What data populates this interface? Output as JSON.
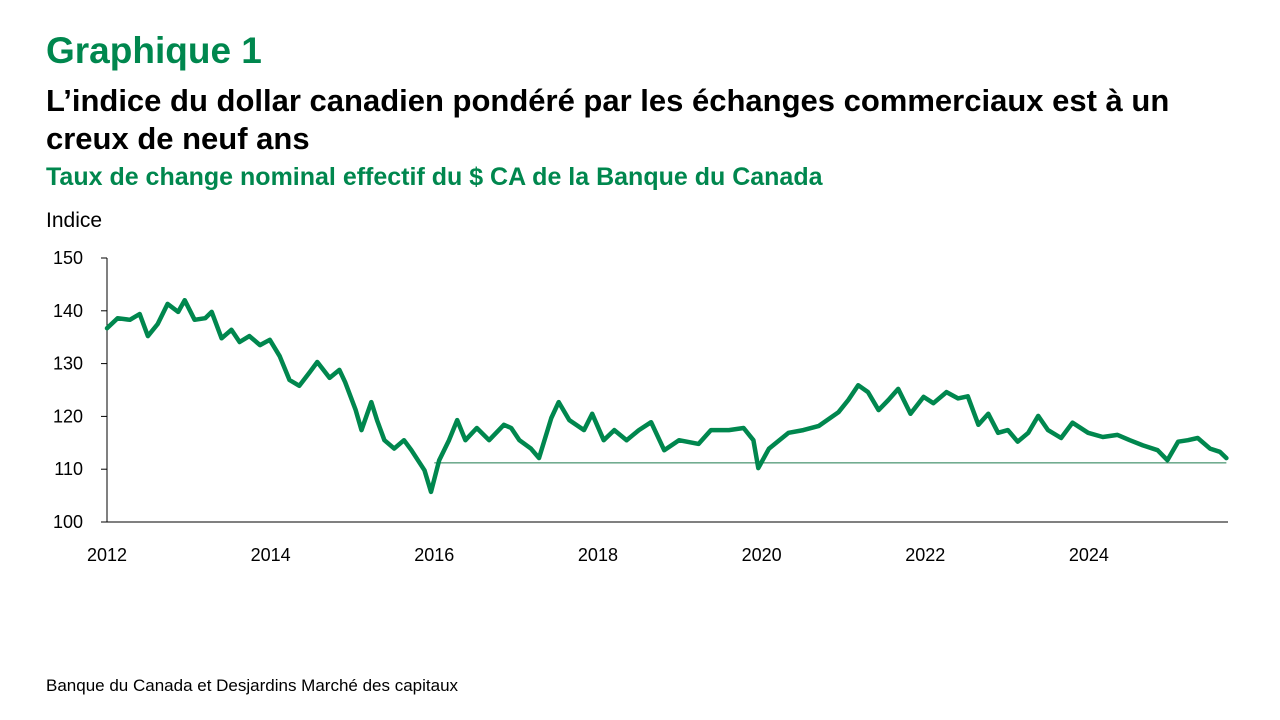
{
  "header": {
    "figure_label": "Graphique 1",
    "title": "L’indice du dollar canadien pondéré par les échanges commerciaux est à un creux de neuf ans",
    "subtitle": "Taux de change nominal effectif du $ CA de la Banque du Canada"
  },
  "source": "Banque du Canada et Desjardins Marché des capitaux",
  "chart_data": {
    "type": "line",
    "title": "Taux de change nominal effectif du $ CA de la Banque du Canada",
    "ylabel": "Indice",
    "xlabel": "",
    "xlim": [
      2012,
      2025.7
    ],
    "ylim": [
      100,
      150
    ],
    "yticks": [
      100,
      110,
      120,
      130,
      140,
      150
    ],
    "xticks": [
      2012,
      2014,
      2016,
      2018,
      2020,
      2022,
      2024
    ],
    "grid": false,
    "line_color": "#00874E",
    "reference_line": {
      "value": 111.2,
      "from": 2016.0,
      "to": 2025.68
    },
    "x": [
      2012.0,
      2012.13,
      2012.28,
      2012.4,
      2012.5,
      2012.62,
      2012.74,
      2012.87,
      2012.95,
      2013.07,
      2013.2,
      2013.28,
      2013.4,
      2013.52,
      2013.62,
      2013.74,
      2013.87,
      2013.99,
      2014.11,
      2014.23,
      2014.35,
      2014.48,
      2014.57,
      2014.72,
      2014.84,
      2014.91,
      2015.04,
      2015.11,
      2015.23,
      2015.3,
      2015.39,
      2015.51,
      2015.63,
      2015.72,
      2015.88,
      2015.96,
      2016.06,
      2016.18,
      2016.28,
      2016.38,
      2016.52,
      2016.67,
      2016.85,
      2016.94,
      2017.04,
      2017.18,
      2017.28,
      2017.43,
      2017.52,
      2017.65,
      2017.83,
      2017.93,
      2018.07,
      2018.2,
      2018.35,
      2018.5,
      2018.65,
      2018.81,
      2018.99,
      2019.23,
      2019.38,
      2019.6,
      2019.78,
      2019.9,
      2019.96,
      2020.09,
      2020.33,
      2020.51,
      2020.7,
      2020.94,
      2021.06,
      2021.18,
      2021.3,
      2021.43,
      2021.55,
      2021.67,
      2021.82,
      2021.98,
      2022.1,
      2022.26,
      2022.4,
      2022.52,
      2022.65,
      2022.77,
      2022.89,
      2023.01,
      2023.13,
      2023.26,
      2023.38,
      2023.5,
      2023.66,
      2023.8,
      2023.99,
      2024.17,
      2024.35,
      2024.5,
      2024.66,
      2024.84,
      2024.96,
      2025.09,
      2025.21,
      2025.33,
      2025.48,
      2025.6,
      2025.68
    ],
    "values": [
      136.7,
      138.6,
      138.3,
      139.4,
      135.2,
      137.5,
      141.3,
      139.8,
      142.0,
      138.3,
      138.6,
      139.8,
      134.8,
      136.4,
      134.1,
      135.2,
      133.5,
      134.5,
      131.4,
      126.9,
      125.8,
      128.4,
      130.3,
      127.3,
      128.8,
      126.5,
      121.2,
      117.4,
      122.7,
      119.3,
      115.5,
      113.9,
      115.5,
      113.6,
      109.8,
      105.7,
      111.7,
      115.5,
      119.3,
      115.5,
      117.8,
      115.5,
      118.4,
      117.8,
      115.5,
      113.9,
      112.1,
      119.7,
      122.7,
      119.3,
      117.4,
      120.5,
      115.5,
      117.4,
      115.5,
      117.4,
      118.9,
      113.6,
      115.5,
      114.8,
      117.4,
      117.4,
      117.8,
      115.5,
      110.2,
      113.9,
      116.9,
      117.4,
      118.2,
      120.8,
      123.1,
      125.9,
      124.6,
      121.2,
      123.1,
      125.2,
      120.5,
      123.7,
      122.5,
      124.6,
      123.4,
      123.8,
      118.4,
      120.5,
      116.9,
      117.4,
      115.2,
      116.9,
      120.1,
      117.4,
      115.9,
      118.8,
      116.9,
      116.1,
      116.5,
      115.5,
      114.5,
      113.6,
      111.7,
      115.2,
      115.5,
      115.9,
      113.9,
      113.3,
      112.1
    ]
  }
}
